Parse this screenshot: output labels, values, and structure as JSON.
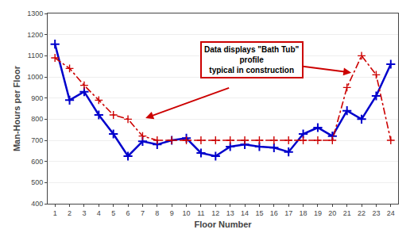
{
  "chart_data": {
    "type": "line",
    "x": [
      1,
      2,
      3,
      4,
      5,
      6,
      7,
      8,
      9,
      10,
      11,
      12,
      13,
      14,
      15,
      16,
      17,
      18,
      19,
      20,
      21,
      22,
      23,
      24
    ],
    "series": [
      {
        "color": "#0000CC",
        "marker": "cross",
        "line_style": "solid",
        "values": [
          1155,
          890,
          930,
          820,
          730,
          625,
          695,
          680,
          700,
          710,
          640,
          625,
          670,
          680,
          670,
          665,
          645,
          730,
          760,
          720,
          840,
          800,
          910,
          1060
        ]
      },
      {
        "color": "#CC0000",
        "marker": "cross",
        "line_style": "dashdot",
        "values": [
          1090,
          1040,
          960,
          890,
          820,
          800,
          720,
          700,
          700,
          700,
          700,
          700,
          700,
          700,
          700,
          700,
          700,
          700,
          700,
          700,
          950,
          1100,
          1010,
          700
        ]
      }
    ],
    "x_label": "Floor Number",
    "y_label": "Man-Hours per Floor",
    "xlim": [
      0.5,
      24.5
    ],
    "ylim": [
      400,
      1300
    ],
    "xticks": [
      1,
      2,
      3,
      4,
      5,
      6,
      7,
      8,
      9,
      10,
      11,
      12,
      13,
      14,
      15,
      16,
      17,
      18,
      19,
      20,
      21,
      22,
      23,
      24
    ],
    "yticks": [
      400,
      500,
      600,
      700,
      800,
      900,
      1000,
      1100,
      1200,
      1300
    ],
    "grid": "y",
    "annotations": [
      {
        "text": "Data displays \"Bath Tub\"\nprofile\ntypical in construction",
        "color": "#CC0000"
      }
    ]
  }
}
